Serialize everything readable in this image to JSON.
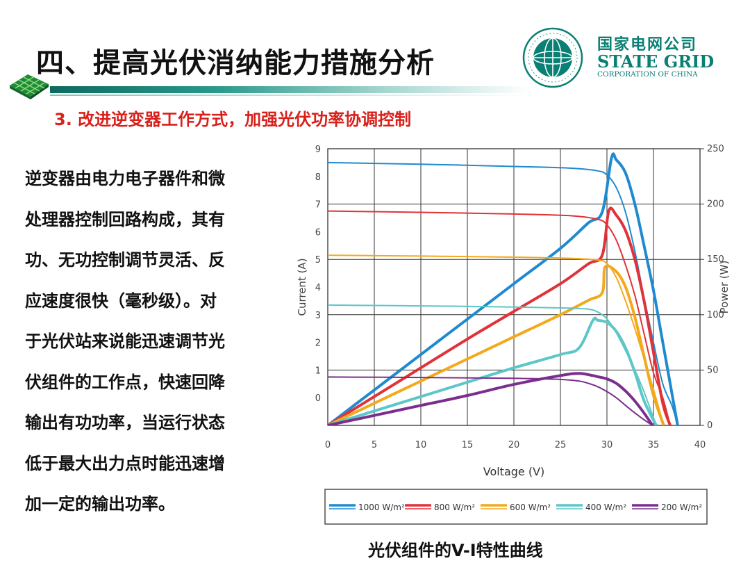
{
  "header": {
    "title": "四、提高光伏消纳能力措施分析",
    "subtitle": "3. 改进逆变器工作方式，加强光伏功率协调控制"
  },
  "logo": {
    "cn": "国家电网公司",
    "en": "STATE GRID",
    "sub": "CORPORATION OF CHINA",
    "seal_text": "国家电网公司 STATE GRID CORPORATION OF CHINA"
  },
  "body": {
    "lines": [
      "逆变器由电力电子器件和微",
      "处理器控制回路构成，其有",
      "功、无功控制调节灵活、反",
      "应速度很快（毫秒级）。对",
      "于光伏站来说能迅速调节光",
      "伏组件的工作点，快速回降",
      "输出有功功率，当运行状态",
      "低于最大出力点时能迅速增",
      "加一定的输出功率。"
    ]
  },
  "caption": "光伏组件的V-I特性曲线",
  "colors": {
    "title_accent": "#0a7f73",
    "subtitle": "#d9201b"
  },
  "chart_data": {
    "type": "line",
    "xlabel": "Voltage (V)",
    "ylabel_left": "Current (A)",
    "ylabel_right": "Power (W)",
    "xlim": [
      0,
      40
    ],
    "ylim_left": [
      -1,
      9
    ],
    "ylim_right": [
      0,
      250
    ],
    "xticks": [
      0,
      5,
      10,
      15,
      20,
      25,
      30,
      35,
      40
    ],
    "xtick_labels": [
      "0",
      "5",
      "10",
      "15",
      "20",
      "25",
      "30",
      "35",
      "40"
    ],
    "yticks_left": [
      0,
      1,
      2,
      3,
      4,
      5,
      6,
      7,
      8,
      9
    ],
    "ytick_labels_left": [
      "0",
      "1",
      "2",
      "3",
      "4",
      "5",
      "6",
      "7",
      "8",
      "9"
    ],
    "yticks_right": [
      0,
      50,
      100,
      150,
      200,
      250
    ],
    "ytick_labels_right": [
      "0",
      "50",
      "100",
      "150",
      "200",
      "250"
    ],
    "grid": true,
    "legend_position": "bottom",
    "series": [
      {
        "name": "1000 W/m²",
        "color": "#1f8ad0",
        "current": [
          [
            0,
            8.5
          ],
          [
            10,
            8.44
          ],
          [
            20,
            8.36
          ],
          [
            26,
            8.3
          ],
          [
            29,
            8.2
          ],
          [
            30,
            8.05
          ],
          [
            31,
            7.6
          ],
          [
            32,
            6.7
          ],
          [
            33,
            5.3
          ],
          [
            34,
            3.6
          ],
          [
            35,
            2.0
          ],
          [
            36,
            0.5
          ],
          [
            37,
            -0.3
          ],
          [
            37.6,
            -1.0
          ]
        ],
        "power": [
          [
            0,
            0
          ],
          [
            5,
            32
          ],
          [
            10,
            64
          ],
          [
            15,
            96
          ],
          [
            20,
            128
          ],
          [
            25,
            160
          ],
          [
            28,
            183
          ],
          [
            29.5,
            193
          ],
          [
            30.5,
            242
          ],
          [
            31,
            240
          ],
          [
            32,
            228
          ],
          [
            33,
            200
          ],
          [
            34,
            162
          ],
          [
            35,
            122
          ],
          [
            36,
            75
          ],
          [
            37,
            28
          ],
          [
            37.6,
            0
          ]
        ]
      },
      {
        "name": "800 W/m²",
        "color": "#e03238",
        "current": [
          [
            0,
            6.75
          ],
          [
            10,
            6.7
          ],
          [
            20,
            6.64
          ],
          [
            26,
            6.58
          ],
          [
            29,
            6.45
          ],
          [
            30,
            6.25
          ],
          [
            31,
            5.7
          ],
          [
            32,
            4.8
          ],
          [
            33,
            3.7
          ],
          [
            34,
            2.3
          ],
          [
            35,
            0.9
          ],
          [
            36,
            0.0
          ],
          [
            36.8,
            -1.0
          ]
        ],
        "power": [
          [
            0,
            0
          ],
          [
            5,
            26
          ],
          [
            10,
            52
          ],
          [
            15,
            78
          ],
          [
            20,
            103
          ],
          [
            25,
            128
          ],
          [
            28,
            146
          ],
          [
            29.5,
            154
          ],
          [
            30.2,
            194
          ],
          [
            31,
            190
          ],
          [
            32,
            176
          ],
          [
            33,
            150
          ],
          [
            34,
            112
          ],
          [
            35,
            66
          ],
          [
            36,
            20
          ],
          [
            36.8,
            0
          ]
        ]
      },
      {
        "name": "600 W/m²",
        "color": "#f3a91b",
        "current": [
          [
            0,
            5.15
          ],
          [
            10,
            5.12
          ],
          [
            20,
            5.08
          ],
          [
            26,
            5.04
          ],
          [
            29,
            4.98
          ],
          [
            30,
            4.85
          ],
          [
            31,
            4.35
          ],
          [
            32,
            3.5
          ],
          [
            33,
            2.5
          ],
          [
            34,
            1.4
          ],
          [
            35,
            0.3
          ],
          [
            36.1,
            -1.0
          ]
        ],
        "power": [
          [
            0,
            0
          ],
          [
            5,
            20
          ],
          [
            10,
            40
          ],
          [
            15,
            60
          ],
          [
            20,
            80
          ],
          [
            25,
            100
          ],
          [
            28,
            113
          ],
          [
            29.5,
            120
          ],
          [
            29.8,
            143
          ],
          [
            31,
            139
          ],
          [
            32,
            125
          ],
          [
            33,
            98
          ],
          [
            34,
            62
          ],
          [
            35,
            27
          ],
          [
            36.1,
            0
          ]
        ]
      },
      {
        "name": "400 W/m²",
        "color": "#5cc6c8",
        "current": [
          [
            0,
            3.35
          ],
          [
            10,
            3.32
          ],
          [
            20,
            3.28
          ],
          [
            26,
            3.24
          ],
          [
            28,
            3.2
          ],
          [
            29,
            3.1
          ],
          [
            30,
            2.85
          ],
          [
            31,
            2.35
          ],
          [
            32,
            1.7
          ],
          [
            33,
            1.0
          ],
          [
            34,
            0.2
          ],
          [
            35.3,
            -1.0
          ]
        ],
        "power": [
          [
            0,
            0
          ],
          [
            5,
            13
          ],
          [
            10,
            26
          ],
          [
            15,
            39
          ],
          [
            20,
            52
          ],
          [
            25,
            64
          ],
          [
            27,
            70
          ],
          [
            28.5,
            95
          ],
          [
            29,
            95
          ],
          [
            30,
            93
          ],
          [
            31,
            85
          ],
          [
            32,
            70
          ],
          [
            33,
            48
          ],
          [
            34,
            22
          ],
          [
            35.3,
            0
          ]
        ]
      },
      {
        "name": "200 W/m²",
        "color": "#7b2e8e",
        "current": [
          [
            0,
            0.75
          ],
          [
            10,
            0.73
          ],
          [
            20,
            0.7
          ],
          [
            25,
            0.66
          ],
          [
            27,
            0.6
          ],
          [
            28,
            0.52
          ],
          [
            29,
            0.4
          ],
          [
            30,
            0.22
          ],
          [
            31,
            0.0
          ],
          [
            32,
            -0.28
          ],
          [
            33,
            -0.55
          ],
          [
            34,
            -0.8
          ],
          [
            34.9,
            -1.0
          ]
        ],
        "power": [
          [
            0,
            0
          ],
          [
            5,
            9
          ],
          [
            10,
            18
          ],
          [
            15,
            27
          ],
          [
            20,
            37
          ],
          [
            25,
            45
          ],
          [
            27,
            47
          ],
          [
            28.5,
            45
          ],
          [
            29,
            44
          ],
          [
            30,
            42
          ],
          [
            31,
            38
          ],
          [
            32,
            31
          ],
          [
            33,
            22
          ],
          [
            34,
            11
          ],
          [
            34.9,
            0
          ]
        ]
      }
    ]
  }
}
